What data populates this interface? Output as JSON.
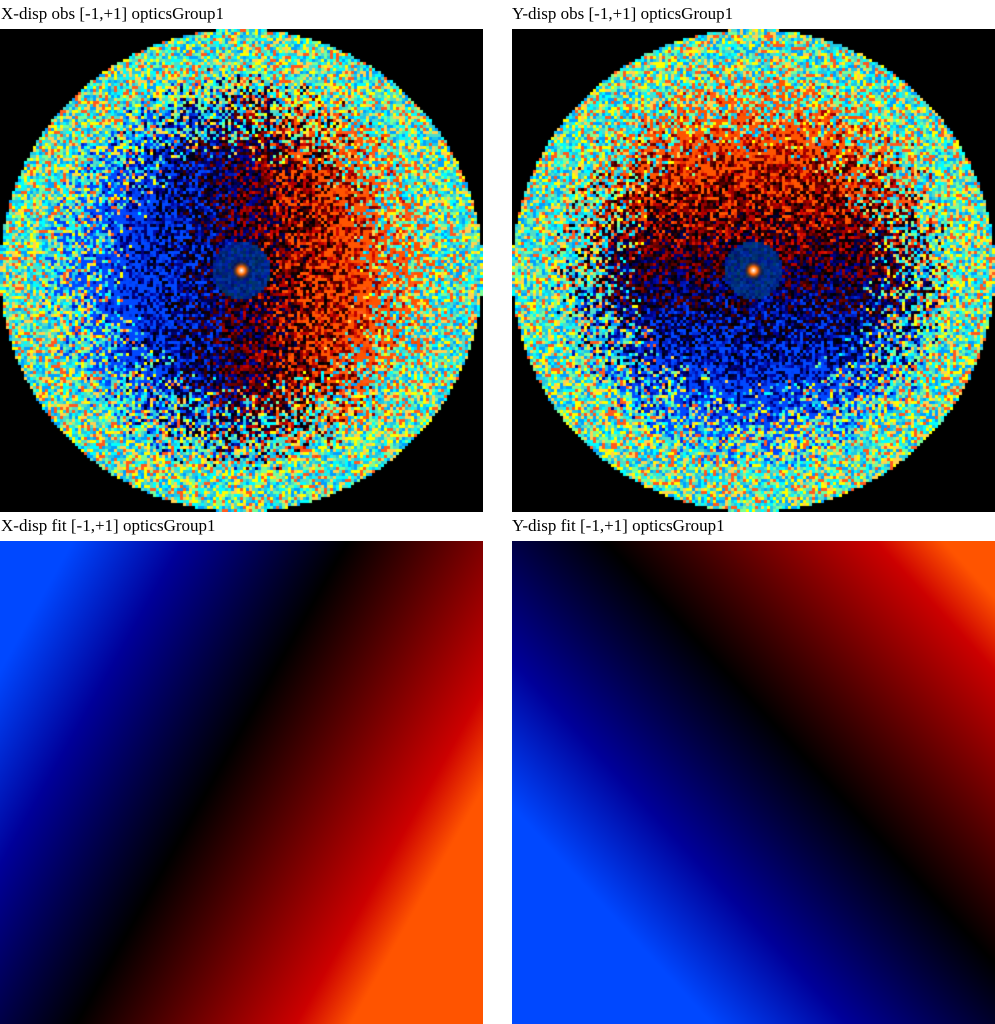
{
  "panels": [
    {
      "title": "X-disp obs [-1,+1] opticsGroup1",
      "kind": "observed",
      "axis": "x"
    },
    {
      "title": "Y-disp obs [-1,+1] opticsGroup1",
      "kind": "observed",
      "axis": "y"
    },
    {
      "title": "X-disp fit [-1,+1] opticsGroup1",
      "kind": "fit",
      "axis": "x"
    },
    {
      "title": "Y-disp fit [-1,+1] opticsGroup1",
      "kind": "fit",
      "axis": "y"
    }
  ],
  "colors": {
    "background": "#000000",
    "page": "#ffffff",
    "negative": "#0000ff",
    "zero": "#000000",
    "positive": "#ff0000",
    "noise": [
      "#00ffff",
      "#ffff00",
      "#4dd0e1",
      "#26c6da",
      "#ffd54f"
    ]
  }
}
